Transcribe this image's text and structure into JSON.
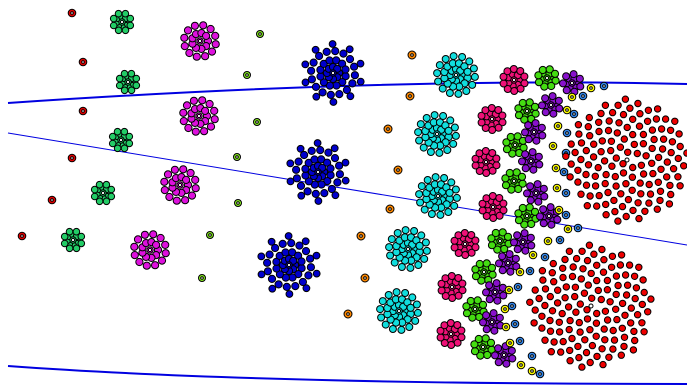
{
  "colors": {
    "background": "#ffffff",
    "line": "#0000e0",
    "outline": "#000000",
    "center": "#ffffff"
  },
  "lines": [
    {
      "id": "top-curve",
      "width": 2
    },
    {
      "id": "middle-line",
      "width": 1
    },
    {
      "id": "bottom-line-a",
      "width": 1
    },
    {
      "id": "bottom-curve",
      "width": 2
    }
  ],
  "clusters": [
    {
      "kind": "dot",
      "color": "#e00000"
    },
    {
      "kind": "rosette",
      "color": "#22cc66"
    },
    {
      "kind": "rosette",
      "color": "#dd11dd"
    },
    {
      "kind": "dot",
      "color": "#88ee22"
    },
    {
      "kind": "rosette",
      "color": "#0000cc"
    },
    {
      "kind": "dot",
      "color": "#ff8800"
    },
    {
      "kind": "rosette",
      "color": "#11dddd"
    },
    {
      "kind": "rosette",
      "color": "#ee1177"
    },
    {
      "kind": "rosette",
      "color": "#44dd11"
    },
    {
      "kind": "rosette",
      "color": "#8811cc"
    },
    {
      "kind": "dot",
      "color": "#ffff00"
    },
    {
      "kind": "dot",
      "color": "#3388ee"
    },
    {
      "kind": "spiral",
      "color": "#ee0000"
    }
  ]
}
